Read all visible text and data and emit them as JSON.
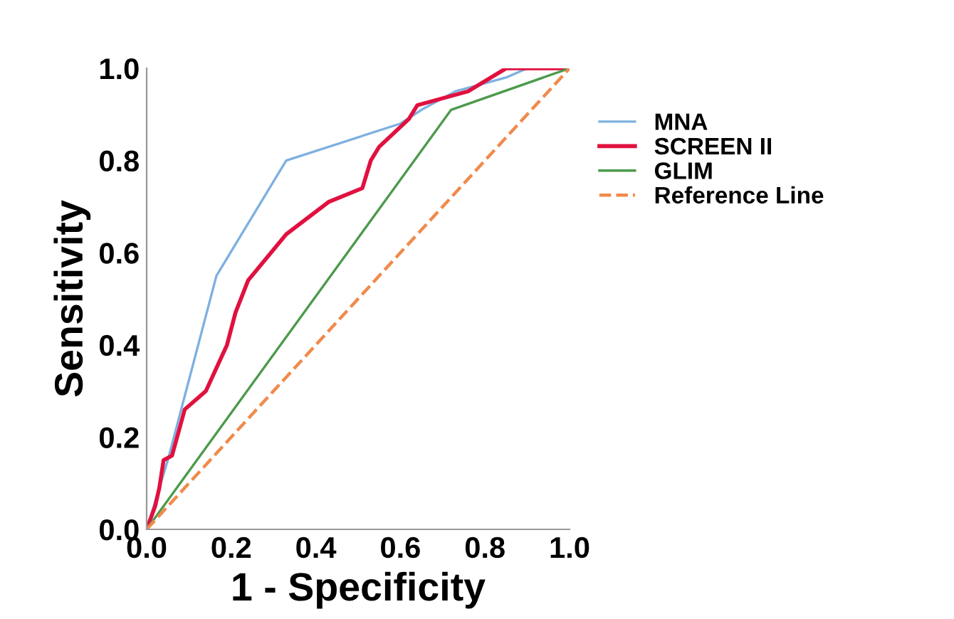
{
  "chart_data": {
    "type": "line",
    "xlabel": "1 - Specificity",
    "ylabel": "Sensitivity",
    "xlim": [
      0,
      1
    ],
    "ylim": [
      0,
      1
    ],
    "xticks": [
      {
        "value": 0,
        "label": "0.0"
      },
      {
        "value": 0.2,
        "label": "0.2"
      },
      {
        "value": 0.4,
        "label": "0.4"
      },
      {
        "value": 0.6,
        "label": "0.6"
      },
      {
        "value": 0.8,
        "label": "0.8"
      },
      {
        "value": 1,
        "label": "1.0"
      }
    ],
    "yticks": [
      {
        "value": 0,
        "label": "0.0"
      },
      {
        "value": 0.2,
        "label": "0.2"
      },
      {
        "value": 0.4,
        "label": "0.4"
      },
      {
        "value": 0.6,
        "label": "0.6"
      },
      {
        "value": 0.8,
        "label": "0.8"
      },
      {
        "value": 1,
        "label": "1.0"
      }
    ],
    "grid": false,
    "legend": "right",
    "series": [
      {
        "name": "MNA",
        "color": "#7eb0e0",
        "x": [
          0,
          0.05,
          0.165,
          0.33,
          0.6,
          0.65,
          0.73,
          0.85,
          0.9,
          1
        ],
        "values": [
          0,
          0.15,
          0.55,
          0.8,
          0.88,
          0.91,
          0.95,
          0.98,
          1.0,
          1.0
        ]
      },
      {
        "name": "SCREEN II",
        "color": "#e0113f",
        "x": [
          0,
          0.02,
          0.03,
          0.04,
          0.06,
          0.09,
          0.14,
          0.19,
          0.21,
          0.24,
          0.33,
          0.43,
          0.51,
          0.53,
          0.55,
          0.62,
          0.64,
          0.72,
          0.76,
          0.85,
          0.93,
          0.95,
          1
        ],
        "values": [
          0,
          0.05,
          0.09,
          0.15,
          0.16,
          0.26,
          0.3,
          0.4,
          0.47,
          0.54,
          0.64,
          0.71,
          0.74,
          0.8,
          0.83,
          0.89,
          0.92,
          0.94,
          0.95,
          1.0,
          1.0,
          1.0,
          1.0
        ]
      },
      {
        "name": "GLIM",
        "color": "#4c9a4c",
        "x": [
          0,
          0.72,
          1
        ],
        "values": [
          0,
          0.91,
          1
        ]
      },
      {
        "name": "Reference Line",
        "color": "#f08a4b",
        "line_style": "dashed",
        "x": [
          0,
          1
        ],
        "values": [
          0,
          1
        ]
      }
    ]
  }
}
